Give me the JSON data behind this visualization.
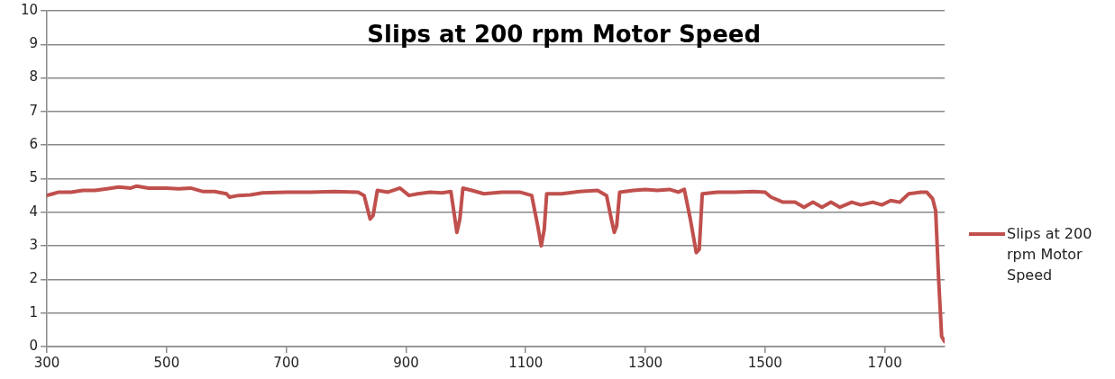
{
  "chart_data": {
    "type": "line",
    "title": "Slips at 200 rpm Motor Speed",
    "x": [
      300,
      310,
      320,
      340,
      360,
      380,
      400,
      420,
      440,
      450,
      470,
      500,
      520,
      540,
      560,
      580,
      600,
      605,
      620,
      640,
      660,
      700,
      740,
      780,
      820,
      830,
      840,
      845,
      852,
      870,
      890,
      905,
      920,
      940,
      960,
      975,
      985,
      990,
      995,
      1010,
      1030,
      1060,
      1090,
      1110,
      1120,
      1126,
      1131,
      1135,
      1160,
      1190,
      1220,
      1235,
      1243,
      1248,
      1252,
      1257,
      1280,
      1300,
      1320,
      1340,
      1355,
      1365,
      1375,
      1385,
      1390,
      1395,
      1420,
      1450,
      1480,
      1500,
      1510,
      1530,
      1550,
      1565,
      1580,
      1595,
      1610,
      1625,
      1645,
      1660,
      1680,
      1695,
      1710,
      1725,
      1740,
      1760,
      1770,
      1780,
      1785,
      1790,
      1795,
      1800
    ],
    "series": [
      {
        "name": "Slips at 200 rpm Motor Speed",
        "color": "#c0504d",
        "values": [
          4.5,
          4.55,
          4.6,
          4.6,
          4.65,
          4.65,
          4.7,
          4.75,
          4.72,
          4.78,
          4.72,
          4.72,
          4.7,
          4.72,
          4.62,
          4.62,
          4.55,
          4.45,
          4.5,
          4.52,
          4.58,
          4.6,
          4.6,
          4.62,
          4.6,
          4.5,
          3.8,
          3.9,
          4.65,
          4.6,
          4.72,
          4.5,
          4.55,
          4.6,
          4.58,
          4.62,
          3.4,
          3.8,
          4.72,
          4.65,
          4.55,
          4.6,
          4.6,
          4.5,
          3.6,
          3.0,
          3.5,
          4.55,
          4.55,
          4.62,
          4.65,
          4.5,
          3.8,
          3.4,
          3.6,
          4.6,
          4.65,
          4.68,
          4.65,
          4.68,
          4.6,
          4.68,
          3.8,
          2.8,
          2.9,
          4.55,
          4.6,
          4.6,
          4.62,
          4.6,
          4.45,
          4.3,
          4.3,
          4.15,
          4.3,
          4.15,
          4.3,
          4.15,
          4.3,
          4.22,
          4.3,
          4.22,
          4.35,
          4.3,
          4.55,
          4.6,
          4.6,
          4.4,
          4.05,
          2.0,
          0.3,
          0.15
        ]
      }
    ],
    "xlim": [
      300,
      1800
    ],
    "xticks": [
      300,
      500,
      700,
      900,
      1100,
      1300,
      1500,
      1700
    ],
    "ylim": [
      0,
      10
    ],
    "yticks": [
      0,
      1,
      2,
      3,
      4,
      5,
      6,
      7,
      8,
      9,
      10
    ],
    "grid": "y",
    "legend": "right",
    "marker": "none",
    "line_style": "solid"
  }
}
